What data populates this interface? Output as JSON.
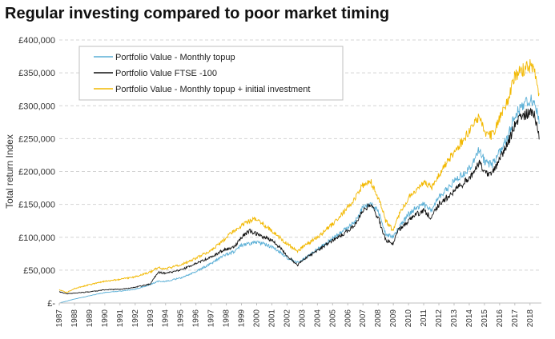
{
  "chart_data": {
    "type": "line",
    "title": "Regular investing compared to poor market timing",
    "xlabel": "",
    "ylabel": "Total return Index",
    "ylim": [
      0,
      400000
    ],
    "y_ticks": [
      "£-",
      "£50,000",
      "£100,000",
      "£150,000",
      "£200,000",
      "£250,000",
      "£300,000",
      "£350,000",
      "£400,000"
    ],
    "x_ticks": [
      "1987",
      "1988",
      "1989",
      "1990",
      "1991",
      "1992",
      "1993",
      "1994",
      "1995",
      "1996",
      "1997",
      "1998",
      "1999",
      "2000",
      "2001",
      "2002",
      "2003",
      "2004",
      "2005",
      "2006",
      "2007",
      "2008",
      "2009",
      "2010",
      "2011",
      "2012",
      "2013",
      "2014",
      "2015",
      "2016",
      "2017",
      "2018"
    ],
    "grid": "horizontal dashed",
    "legend_position": "top-left",
    "x": [
      1987.0,
      1987.5,
      1988.0,
      1989.0,
      1990.0,
      1991.0,
      1992.0,
      1993.0,
      1993.5,
      1994.0,
      1995.0,
      1996.0,
      1997.0,
      1997.8,
      1998.5,
      1999.0,
      1999.5,
      2000.0,
      2000.5,
      2001.0,
      2001.5,
      2002.0,
      2002.7,
      2003.0,
      2004.0,
      2005.0,
      2006.0,
      2006.5,
      2007.0,
      2007.5,
      2008.0,
      2008.5,
      2009.0,
      2009.3,
      2010.0,
      2010.5,
      2011.0,
      2011.5,
      2012.0,
      2013.0,
      2014.0,
      2014.7,
      2015.0,
      2015.5,
      2016.0,
      2016.5,
      2017.0,
      2017.5,
      2018.0,
      2018.3,
      2018.6
    ],
    "series": [
      {
        "name": "Portfolio Value - Monthly topup",
        "color": "#5aafd6",
        "values": [
          0,
          3000,
          6000,
          11000,
          16000,
          18000,
          21000,
          28000,
          33000,
          33000,
          38000,
          48000,
          60000,
          72000,
          78000,
          88000,
          90000,
          92000,
          90000,
          85000,
          78000,
          68000,
          62000,
          65000,
          82000,
          98000,
          115000,
          125000,
          145000,
          150000,
          140000,
          105000,
          100000,
          112000,
          135000,
          145000,
          150000,
          140000,
          160000,
          185000,
          205000,
          235000,
          215000,
          210000,
          230000,
          250000,
          285000,
          300000,
          310000,
          305000,
          275000
        ]
      },
      {
        "name": "Portfolio Value FTSE -100",
        "color": "#111111",
        "values": [
          17000,
          14000,
          15000,
          17000,
          20000,
          21000,
          24000,
          29000,
          47000,
          45000,
          50000,
          60000,
          70000,
          80000,
          85000,
          100000,
          110000,
          105000,
          100000,
          95000,
          85000,
          72000,
          58000,
          65000,
          80000,
          95000,
          110000,
          120000,
          140000,
          150000,
          130000,
          95000,
          90000,
          110000,
          125000,
          135000,
          140000,
          130000,
          150000,
          170000,
          190000,
          215000,
          200000,
          195000,
          220000,
          240000,
          270000,
          285000,
          290000,
          285000,
          255000
        ]
      },
      {
        "name": "Portfolio Value - Monthly topup + initial investment",
        "color": "#f2b800",
        "values": [
          20000,
          16000,
          22000,
          28000,
          33000,
          36000,
          40000,
          47000,
          54000,
          52000,
          58000,
          68000,
          80000,
          95000,
          110000,
          118000,
          125000,
          128000,
          118000,
          110000,
          100000,
          90000,
          78000,
          85000,
          100000,
          120000,
          145000,
          160000,
          180000,
          185000,
          160000,
          125000,
          110000,
          130000,
          160000,
          170000,
          185000,
          175000,
          195000,
          230000,
          260000,
          285000,
          260000,
          255000,
          280000,
          305000,
          345000,
          355000,
          360000,
          355000,
          320000
        ]
      }
    ]
  }
}
